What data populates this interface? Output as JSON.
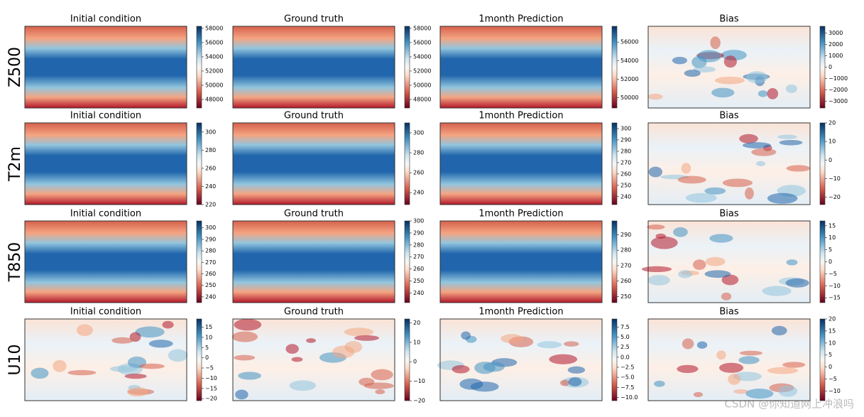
{
  "row_labels": [
    "Z500",
    "T2m",
    "T850",
    "U10"
  ],
  "watermark": "CSDN @你知道网上冲浪吗",
  "chart_data": [
    {
      "type": "heatmap",
      "title": "Initial condition",
      "clim": [
        46800,
        58300
      ],
      "cticks": [
        48000,
        50000,
        52000,
        54000,
        56000,
        58000
      ]
    },
    {
      "type": "heatmap",
      "title": "Ground truth",
      "clim": [
        46800,
        58300
      ],
      "cticks": [
        48000,
        50000,
        52000,
        54000,
        56000,
        58000
      ]
    },
    {
      "type": "heatmap",
      "title": "1month Prediction",
      "clim": [
        48900,
        57700
      ],
      "cticks": [
        50000,
        52000,
        54000,
        56000
      ]
    },
    {
      "type": "heatmap",
      "title": "Bias",
      "clim": [
        -3600,
        3600
      ],
      "cticks": [
        {
          "value": -3000,
          "label": "−3000"
        },
        {
          "value": -2000,
          "label": "−2000"
        },
        {
          "value": -1000,
          "label": "−1000"
        },
        0,
        1000,
        2000,
        3000
      ]
    },
    {
      "type": "heatmap",
      "title": "Initial condition",
      "clim": [
        220,
        310
      ],
      "cticks": [
        220,
        240,
        260,
        280,
        300
      ]
    },
    {
      "type": "heatmap",
      "title": "Ground truth",
      "clim": [
        228,
        310
      ],
      "cticks": [
        240,
        260,
        280,
        300
      ]
    },
    {
      "type": "heatmap",
      "title": "1month Prediction",
      "clim": [
        233,
        305
      ],
      "cticks": [
        240,
        250,
        260,
        270,
        280,
        290,
        300
      ]
    },
    {
      "type": "heatmap",
      "title": "Bias",
      "clim": [
        -24,
        20
      ],
      "cticks": [
        {
          "value": -20,
          "label": "−20"
        },
        {
          "value": -10,
          "label": "−10"
        },
        0,
        10,
        20
      ]
    },
    {
      "type": "heatmap",
      "title": "Initial condition",
      "clim": [
        235,
        306
      ],
      "cticks": [
        240,
        250,
        260,
        270,
        280,
        290,
        300
      ]
    },
    {
      "type": "heatmap",
      "title": "Ground truth",
      "clim": [
        232,
        300
      ],
      "cticks": [
        240,
        250,
        260,
        270,
        280,
        290,
        300
      ]
    },
    {
      "type": "heatmap",
      "title": "1month Prediction",
      "clim": [
        246,
        299
      ],
      "cticks": [
        250,
        260,
        270,
        280,
        290
      ]
    },
    {
      "type": "heatmap",
      "title": "Bias",
      "clim": [
        -17,
        17
      ],
      "cticks": [
        {
          "value": -15,
          "label": "−15"
        },
        {
          "value": -10,
          "label": "−10"
        },
        {
          "value": -5,
          "label": "−5"
        },
        0,
        5,
        10,
        15
      ]
    },
    {
      "type": "heatmap",
      "title": "Initial condition",
      "clim": [
        -21,
        19
      ],
      "cticks": [
        {
          "value": -20,
          "label": "−20"
        },
        {
          "value": -15,
          "label": "−15"
        },
        {
          "value": -10,
          "label": "−10"
        },
        {
          "value": -5,
          "label": "−5"
        },
        0,
        5,
        10,
        15
      ]
    },
    {
      "type": "heatmap",
      "title": "Ground truth",
      "clim": [
        -20,
        22
      ],
      "cticks": [
        {
          "value": -20,
          "label": "−20"
        },
        {
          "value": -10,
          "label": "−10"
        },
        0,
        10,
        20
      ]
    },
    {
      "type": "heatmap",
      "title": "1month Prediction",
      "clim": [
        -10.8,
        9.5
      ],
      "cticks": [
        {
          "value": -10,
          "label": "−10.0"
        },
        {
          "value": -7.5,
          "label": "−7.5"
        },
        {
          "value": -5,
          "label": "−5.0"
        },
        {
          "value": -2.5,
          "label": "−2.5"
        },
        {
          "value": 0,
          "label": "0.0"
        },
        2.5,
        {
          "value": 5,
          "label": "5.0"
        },
        7.5
      ]
    },
    {
      "type": "heatmap",
      "title": "Bias",
      "clim": [
        -14,
        20
      ],
      "cticks": [
        {
          "value": -10,
          "label": "−10"
        },
        {
          "value": -5,
          "label": "−5"
        },
        0,
        5,
        10,
        15,
        20
      ]
    }
  ]
}
